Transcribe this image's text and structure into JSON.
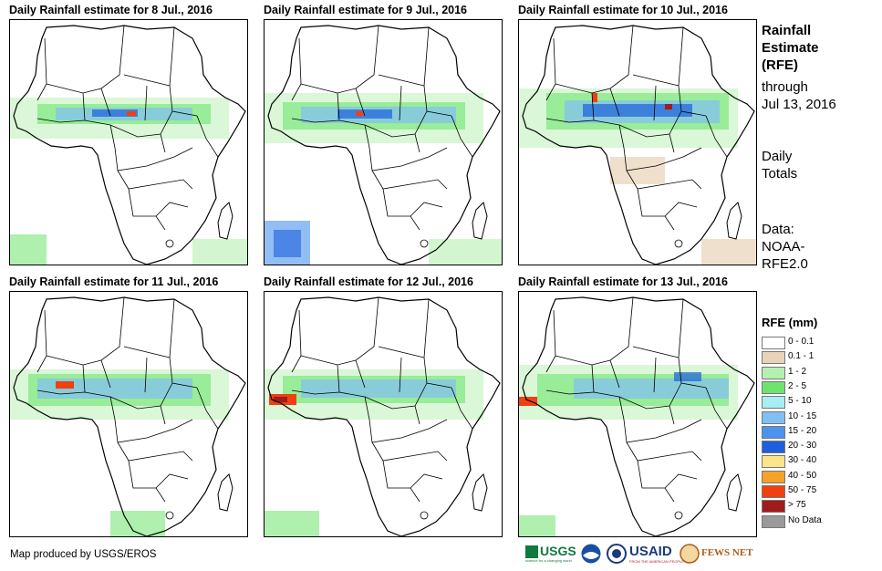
{
  "panels": [
    {
      "title": "Daily Rainfall estimate for 8 Jul., 2016"
    },
    {
      "title": "Daily Rainfall estimate for 9 Jul., 2016"
    },
    {
      "title": "Daily Rainfall estimate for 10 Jul., 2016"
    },
    {
      "title": "Daily Rainfall estimate for 11 Jul., 2016"
    },
    {
      "title": "Daily Rainfall estimate for 12 Jul., 2016"
    },
    {
      "title": "Daily Rainfall estimate for 13 Jul., 2016"
    }
  ],
  "side": {
    "title_lines": [
      "Rainfall",
      "Estimate",
      "(RFE)"
    ],
    "through_lines": [
      "through",
      "Jul 13, 2016"
    ],
    "totals_lines": [
      "Daily",
      "Totals"
    ],
    "data_lines": [
      "Data:",
      "NOAA-",
      "RFE2.0"
    ]
  },
  "legend": {
    "title": "RFE (mm)",
    "items": [
      {
        "label": "0 - 0.1",
        "color": "#ffffff"
      },
      {
        "label": "0.1 - 1",
        "color": "#e8d3b8"
      },
      {
        "label": "1 - 2",
        "color": "#b6f0b0"
      },
      {
        "label": "2 - 5",
        "color": "#6ee46e"
      },
      {
        "label": "5 - 10",
        "color": "#a8eef2"
      },
      {
        "label": "10 - 15",
        "color": "#80bff5"
      },
      {
        "label": "15 - 20",
        "color": "#4b93ec"
      },
      {
        "label": "20 - 30",
        "color": "#1e5fdc"
      },
      {
        "label": "30 - 40",
        "color": "#fbe48a"
      },
      {
        "label": "40 - 50",
        "color": "#f6a12a"
      },
      {
        "label": "50 - 75",
        "color": "#f04010"
      },
      {
        "label": "> 75",
        "color": "#a01c1c"
      },
      {
        "label": "No Data",
        "color": "#9a9a9a"
      }
    ]
  },
  "footer": {
    "credit": "Map produced by USGS/EROS"
  },
  "logos": {
    "usgs": "USGS",
    "usgs_tagline": "science for a changing world",
    "usaid": "USAID",
    "usaid_tagline": "FROM THE AMERICAN PEOPLE",
    "fewsnet": "FEWS NET"
  }
}
